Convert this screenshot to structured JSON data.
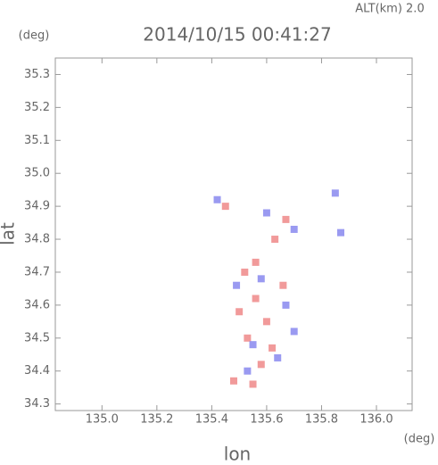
{
  "chart_data": {
    "type": "scatter",
    "title": "2014/10/15 00:41:27",
    "subtitle": "ALT(km) 2.0",
    "x_label": "lon",
    "y_label": "lat",
    "x_unit": "(deg)",
    "y_unit": "(deg)",
    "xlim": [
      134.83,
      136.13
    ],
    "ylim": [
      34.28,
      35.35
    ],
    "xticks": [
      {
        "value": 135,
        "label": "135.0"
      },
      135.2,
      135.4,
      135.6,
      135.8,
      {
        "value": 136,
        "label": "136.0"
      }
    ],
    "yticks": [
      34.3,
      34.4,
      34.5,
      34.6,
      34.7,
      34.8,
      34.9,
      {
        "value": 35,
        "label": "35.0"
      },
      35.1,
      35.2,
      35.3
    ],
    "series": [
      {
        "color": "#ee8888",
        "x": [
          135.55,
          135.58,
          135.53,
          135.6,
          135.56,
          135.52,
          135.56,
          135.63,
          135.67,
          135.45,
          135.62,
          135.5,
          135.48,
          135.66
        ],
        "values": [
          34.36,
          34.42,
          34.5,
          34.55,
          34.62,
          34.7,
          34.73,
          34.8,
          34.86,
          34.9,
          34.47,
          34.58,
          34.37,
          34.66
        ]
      },
      {
        "color": "#8888ee",
        "x": [
          135.55,
          135.64,
          135.7,
          135.49,
          135.58,
          135.7,
          135.6,
          135.85,
          135.42,
          135.53,
          135.87,
          135.67
        ],
        "values": [
          34.48,
          34.44,
          34.52,
          34.66,
          34.68,
          34.83,
          34.88,
          34.94,
          34.92,
          34.4,
          34.82,
          34.6
        ]
      }
    ]
  }
}
